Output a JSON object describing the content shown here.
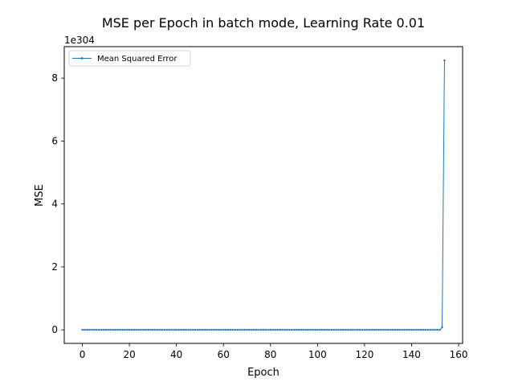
{
  "chart_data": {
    "type": "line",
    "title": "MSE per Epoch in batch mode, Learning Rate 0.01",
    "xlabel": "Epoch",
    "ylabel": "MSE",
    "y_offset_text": "1e304",
    "xlim": [
      -7.7,
      161.7
    ],
    "ylim": [
      -0.43,
      9.0
    ],
    "x_ticks": [
      0,
      20,
      40,
      60,
      80,
      100,
      120,
      140,
      160
    ],
    "x_tick_labels": [
      "0",
      "20",
      "40",
      "60",
      "80",
      "100",
      "120",
      "140",
      "160"
    ],
    "y_ticks": [
      0,
      2,
      4,
      6,
      8
    ],
    "y_tick_labels": [
      "0",
      "2",
      "4",
      "6",
      "8"
    ],
    "grid": false,
    "legend_position": "top-left",
    "colors": {
      "series": "#1f77b4",
      "axes": "#000000",
      "legend_border": "#cccccc"
    },
    "series": [
      {
        "name": "Mean Squared Error",
        "marker": "dot",
        "x_range": [
          0,
          154
        ],
        "y_default": 0,
        "y_overrides": {
          "153": 0.08,
          "154": 8.56
        }
      }
    ]
  }
}
